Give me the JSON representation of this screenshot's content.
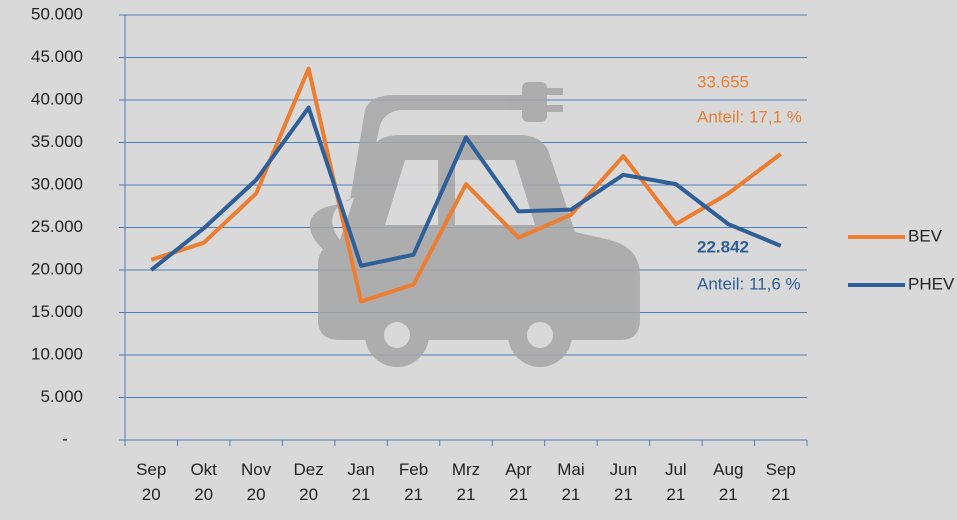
{
  "chart_data": {
    "type": "line",
    "categories": [
      "Sep 20",
      "Okt 20",
      "Nov 20",
      "Dez 20",
      "Jan 21",
      "Feb 21",
      "Mrz 21",
      "Apr 21",
      "Mai 21",
      "Jun 21",
      "Jul 21",
      "Aug 21",
      "Sep 21"
    ],
    "series": [
      {
        "name": "BEV",
        "color": "#ed7d31",
        "values": [
          21200,
          23200,
          29000,
          43700,
          16300,
          18300,
          30100,
          23800,
          26500,
          33400,
          25400,
          29000,
          33655
        ]
      },
      {
        "name": "PHEV",
        "color": "#2f5f98",
        "values": [
          20000,
          24900,
          30600,
          39100,
          20500,
          21800,
          35600,
          26900,
          27100,
          31200,
          30100,
          25400,
          22842
        ]
      }
    ],
    "ylim": [
      0,
      50000
    ],
    "yticks": [
      {
        "value": 0,
        "label": "-"
      },
      {
        "value": 5000,
        "label": "5.000"
      },
      {
        "value": 10000,
        "label": "10.000"
      },
      {
        "value": 15000,
        "label": "15.000"
      },
      {
        "value": 20000,
        "label": "20.000"
      },
      {
        "value": 25000,
        "label": "25.000"
      },
      {
        "value": 30000,
        "label": "30.000"
      },
      {
        "value": 35000,
        "label": "35.000"
      },
      {
        "value": 40000,
        "label": "40.000"
      },
      {
        "value": 45000,
        "label": "45.000"
      },
      {
        "value": 50000,
        "label": "50.000"
      }
    ],
    "grid": true,
    "grid_color": "#4a7ebb",
    "legend": "right",
    "annotations": [
      {
        "text": "33.655",
        "color": "#ed7d31"
      },
      {
        "text": "Anteil: 17,1 %",
        "color": "#ed7d31"
      },
      {
        "text": "22.842",
        "color": "#2f5f98"
      },
      {
        "text": "Anteil: 11,6 %",
        "color": "#2f5f98"
      }
    ]
  }
}
